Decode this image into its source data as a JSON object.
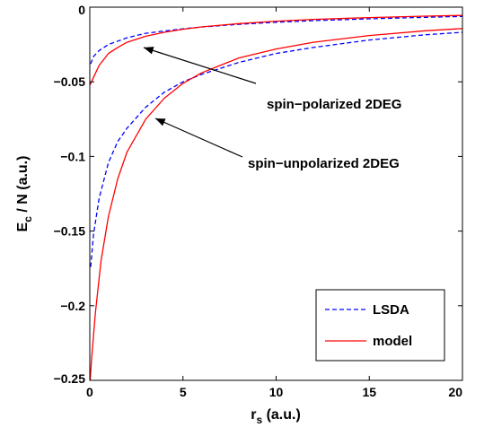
{
  "chart_data": {
    "type": "line",
    "title": "",
    "xlabel_main": "r",
    "xlabel_sub": "s",
    "xlabel_rest": " (a.u.)",
    "ylabel_main": "E",
    "ylabel_sub": "c",
    "ylabel_rest": " / N  (a.u.)",
    "xlim": [
      0,
      20
    ],
    "ylim": [
      -0.25,
      0
    ],
    "xticks": [
      0,
      5,
      10,
      15,
      20
    ],
    "xtick_labels": [
      "0",
      "5",
      "10",
      "15",
      "20"
    ],
    "yticks": [
      0,
      -0.05,
      -0.1,
      -0.15,
      -0.2,
      -0.25
    ],
    "ytick_labels": [
      "0",
      "−0.05",
      "−0.1",
      "−0.15",
      "−0.2",
      "−0.25"
    ],
    "grid": false,
    "legend_position": "bottom-right",
    "legend": [
      {
        "label": "LSDA",
        "color": "#0000ff",
        "dash": "dashed"
      },
      {
        "label": "model",
        "color": "#ff0000",
        "dash": "solid"
      }
    ],
    "series": [
      {
        "group": "spin-polarized 2DEG",
        "legend_ref": "LSDA",
        "color": "#0000ff",
        "dash": "dashed",
        "x": [
          0.05,
          0.2,
          0.5,
          1,
          2,
          3,
          4,
          5,
          6,
          8,
          10,
          12,
          15,
          18,
          20
        ],
        "y": [
          -0.038,
          -0.033,
          -0.029,
          -0.025,
          -0.0205,
          -0.0175,
          -0.016,
          -0.0145,
          -0.0133,
          -0.0115,
          -0.0101,
          -0.009,
          -0.0078,
          -0.0068,
          -0.0062
        ]
      },
      {
        "group": "spin-polarized 2DEG",
        "legend_ref": "model",
        "color": "#ff0000",
        "dash": "solid",
        "x": [
          0.02,
          0.2,
          0.5,
          1,
          1.5,
          2,
          3,
          4,
          5,
          6,
          8,
          10,
          12,
          15,
          18,
          20
        ],
        "y": [
          -0.052,
          -0.047,
          -0.039,
          -0.031,
          -0.027,
          -0.0235,
          -0.0195,
          -0.0168,
          -0.0148,
          -0.0132,
          -0.011,
          -0.0094,
          -0.0082,
          -0.007,
          -0.006,
          -0.0055
        ]
      },
      {
        "group": "spin-unpolarized 2DEG",
        "legend_ref": "LSDA",
        "color": "#0000ff",
        "dash": "dashed",
        "x": [
          0.05,
          0.2,
          0.5,
          1,
          1.5,
          2,
          3,
          4,
          5,
          6,
          8,
          10,
          12,
          15,
          18,
          20
        ],
        "y": [
          -0.174,
          -0.152,
          -0.128,
          -0.104,
          -0.09,
          -0.081,
          -0.067,
          -0.057,
          -0.05,
          -0.045,
          -0.037,
          -0.031,
          -0.027,
          -0.022,
          -0.0185,
          -0.0168
        ]
      },
      {
        "group": "spin-unpolarized 2DEG",
        "legend_ref": "model",
        "color": "#ff0000",
        "dash": "solid",
        "x": [
          0.02,
          0.1,
          0.3,
          0.6,
          1,
          1.5,
          2,
          3,
          4,
          5,
          6,
          8,
          10,
          12,
          15,
          18,
          20
        ],
        "y": [
          -0.25,
          -0.235,
          -0.205,
          -0.17,
          -0.14,
          -0.115,
          -0.097,
          -0.075,
          -0.061,
          -0.051,
          -0.044,
          -0.034,
          -0.028,
          -0.0235,
          -0.019,
          -0.0158,
          -0.0143
        ]
      }
    ],
    "annotations": [
      {
        "text": "spin−polarized 2DEG",
        "arrow_to": {
          "x": 2.6,
          "y": -0.0215
        }
      },
      {
        "text": "spin−unpolarized 2DEG",
        "arrow_to": {
          "x": 3.4,
          "y": -0.0605
        }
      }
    ]
  }
}
